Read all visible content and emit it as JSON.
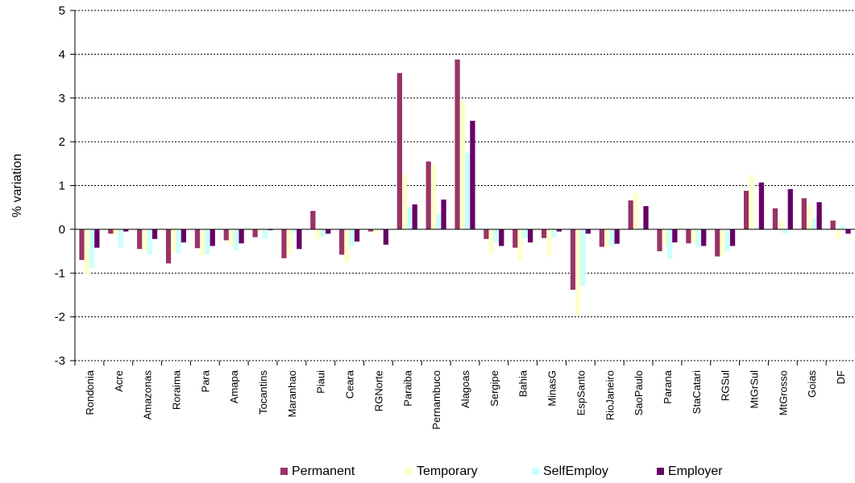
{
  "chart_data": {
    "type": "bar",
    "title": "",
    "xlabel": "",
    "ylabel": "% variation",
    "ylim": [
      -3,
      5
    ],
    "yticks": [
      "5",
      "4",
      "3",
      "2",
      "1",
      "0",
      "-1",
      "-2",
      "-3"
    ],
    "grid": "dotted horizontal",
    "legend_position": "bottom",
    "categories": [
      "Rondonia",
      "Acre",
      "Amazonas",
      "Roraima",
      "Para",
      "Amapa",
      "Tocantins",
      "Maranhao",
      "Piaui",
      "Ceara",
      "RGNorte",
      "Paraiba",
      "Pernambuco",
      "Alagoas",
      "Sergipe",
      "Bahia",
      "MinasG",
      "EspSanto",
      "RioJaneiro",
      "SaoPaulo",
      "Parana",
      "StaCatari",
      "RGSul",
      "MtGrSul",
      "MtGrosso",
      "Goias",
      "DF"
    ],
    "series": [
      {
        "name": "Permanent",
        "color": "#993366",
        "values": [
          -0.7,
          -0.1,
          -0.45,
          -0.78,
          -0.43,
          -0.25,
          -0.18,
          -0.66,
          0.42,
          -0.58,
          -0.05,
          3.57,
          1.55,
          3.88,
          -0.22,
          -0.42,
          -0.2,
          -1.38,
          -0.4,
          0.66,
          -0.5,
          -0.32,
          -0.62,
          0.88,
          0.48,
          0.71,
          0.2
        ]
      },
      {
        "name": "Temporary",
        "color": "#FFFFCC",
        "values": [
          -1.02,
          -0.12,
          -0.5,
          -0.52,
          -0.6,
          -0.38,
          -0.05,
          -0.58,
          -0.22,
          -0.75,
          -0.1,
          1.25,
          1.47,
          2.95,
          -0.55,
          -0.72,
          -0.62,
          -1.95,
          -0.45,
          0.83,
          -0.38,
          -0.3,
          -0.6,
          1.25,
          0.2,
          0.55,
          -0.22
        ]
      },
      {
        "name": "SelfEmploy",
        "color": "#CCFFFF",
        "values": [
          -0.88,
          -0.42,
          -0.58,
          -0.55,
          -0.58,
          -0.48,
          -0.22,
          -0.08,
          -0.16,
          -0.4,
          0.02,
          0.5,
          0.35,
          1.75,
          -0.3,
          -0.2,
          -0.18,
          -1.3,
          -0.38,
          0.05,
          -0.68,
          -0.4,
          -0.5,
          0.05,
          -0.1,
          0.25,
          0.08
        ]
      },
      {
        "name": "Employer",
        "color": "#660066",
        "values": [
          -0.42,
          -0.05,
          -0.22,
          -0.3,
          -0.38,
          -0.32,
          -0.02,
          -0.45,
          -0.1,
          -0.28,
          -0.35,
          0.57,
          0.68,
          2.48,
          -0.38,
          -0.3,
          -0.05,
          -0.1,
          -0.33,
          0.53,
          -0.3,
          -0.38,
          -0.38,
          1.07,
          0.92,
          0.62,
          -0.1
        ]
      }
    ]
  }
}
